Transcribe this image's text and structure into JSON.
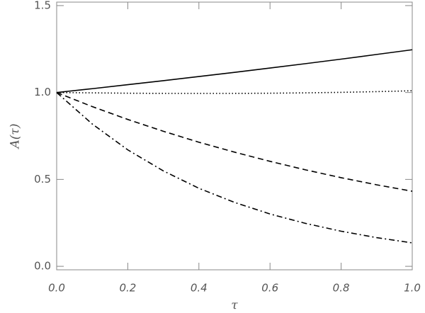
{
  "chart_data": {
    "type": "line",
    "xlabel": "τ",
    "ylabel": "A(τ)",
    "x": [
      0,
      0.1,
      0.2,
      0.3,
      0.4,
      0.5,
      0.6,
      0.7,
      0.8,
      0.9,
      1.0
    ],
    "series": [
      {
        "color": "#000000",
        "dash": "solid",
        "values": [
          1,
          1.022,
          1.045,
          1.068,
          1.092,
          1.116,
          1.141,
          1.166,
          1.192,
          1.219,
          1.246
        ]
      },
      {
        "color": "#000000",
        "dash": "dotted",
        "values": [
          1,
          0.998,
          0.996,
          0.995,
          0.995,
          0.995,
          0.996,
          0.998,
          1.001,
          1.005,
          1.01
        ]
      },
      {
        "color": "#000000",
        "dash": "dashed",
        "values": [
          1,
          0.919,
          0.845,
          0.777,
          0.714,
          0.657,
          0.604,
          0.555,
          0.51,
          0.469,
          0.432
        ]
      },
      {
        "color": "#000000",
        "dash": "dashdot",
        "values": [
          1,
          0.819,
          0.67,
          0.549,
          0.449,
          0.368,
          0.301,
          0.247,
          0.202,
          0.165,
          0.135
        ]
      }
    ],
    "xlim": [
      0,
      1
    ],
    "ylim": [
      -0.02,
      1.52
    ],
    "xticks": [
      {
        "value": 0,
        "label": "0.0"
      },
      0.2,
      0.4,
      0.6,
      0.8,
      {
        "value": 1,
        "label": "1.0"
      }
    ],
    "yticks": [
      {
        "value": 0,
        "label": "0.0"
      },
      0.5,
      {
        "value": 1,
        "label": "1.0"
      },
      1.5
    ]
  }
}
